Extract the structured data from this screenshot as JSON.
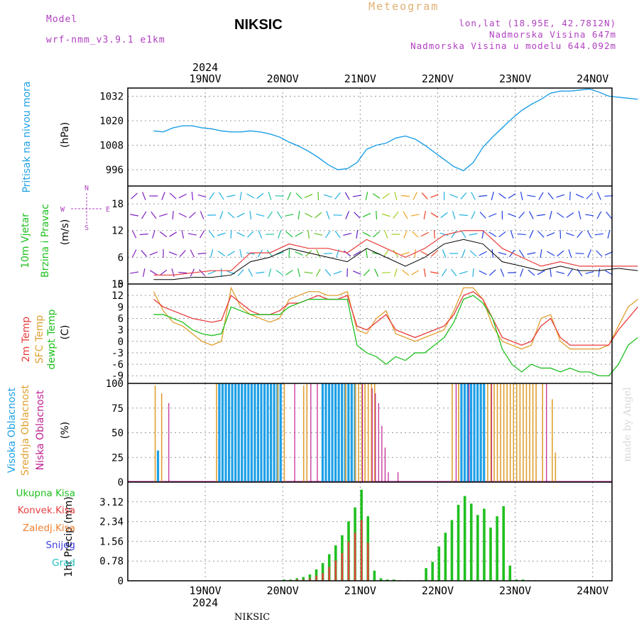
{
  "header": {
    "model_label": "Model",
    "model_value": "wrf-nmm_v3.9.1 e1km",
    "title": "NIKSIC",
    "meteogram": "Meteogram",
    "lonlat": "lon,lat (18.95E, 42.7812N)",
    "altitude": "Nadmorska Visina 647m",
    "altitude_model": "Nadmorska Visina u modelu 644.092m"
  },
  "footer": {
    "station": "NIKSIC",
    "credit": "made by Angel"
  },
  "colors": {
    "pressure": "#1ea0e6",
    "temp2m": "#e83c3c",
    "sfc": "#e0a030",
    "dew": "#20c020",
    "high": "#1ea0e6",
    "mid": "#e0a030",
    "low": "#c02090",
    "total": "#20c020",
    "conv": "#e84040",
    "frozen": "#f08030",
    "snow": "#4040e0",
    "hail": "#20c0c0"
  },
  "chart_data": [
    {
      "type": "line",
      "panel": "pressure",
      "ylabel": [
        "Pritisak na nivou mora",
        "(hPa)"
      ],
      "ylim": [
        988,
        1036
      ],
      "yticks": [
        996,
        1008,
        1020,
        1032
      ],
      "x_days": [
        "19NOV",
        "20NOV",
        "21NOV",
        "22NOV",
        "23NOV",
        "24NOV"
      ],
      "year": "2024",
      "x": [
        0,
        3,
        6,
        9,
        12,
        15,
        18,
        21,
        24,
        27,
        30,
        33,
        36,
        39,
        42,
        45,
        48,
        51,
        54,
        57,
        60,
        63,
        66,
        69,
        72,
        75,
        78,
        81,
        84,
        87,
        90,
        93,
        96,
        99,
        102,
        105,
        108,
        111,
        114,
        117,
        120,
        123,
        126,
        129,
        132,
        135,
        138,
        141,
        144,
        147,
        150
      ],
      "series": [
        {
          "values": [
            1015,
            1014.5,
            1016.5,
            1017.5,
            1017.5,
            1016.5,
            1016,
            1015,
            1014.5,
            1014.5,
            1015,
            1014.5,
            1013.5,
            1012,
            1009.5,
            1007.5,
            1005,
            1002,
            998.5,
            996,
            996.5,
            999.5,
            1006,
            1008,
            1009,
            1011.5,
            1012.5,
            1011,
            1008,
            1004.5,
            1001,
            997.5,
            995.5,
            999.5,
            1007,
            1012,
            1016.5,
            1021,
            1025,
            1028,
            1030.5,
            1033.5,
            1034.5,
            1034.5,
            1035,
            1035.5,
            1034,
            1032,
            1031.5,
            1031,
            1030.5
          ]
        }
      ]
    },
    {
      "type": "line",
      "panel": "wind",
      "ylabel": [
        "10m Vjetar",
        "Brzina i Pravac",
        "(m/s)"
      ],
      "compass": {
        "n": "N",
        "s": "S",
        "e": "E",
        "w": "W"
      },
      "ylim": [
        0,
        22
      ],
      "yticks": [
        0,
        6,
        12,
        18
      ],
      "x": [
        0,
        6,
        12,
        18,
        24,
        30,
        36,
        42,
        48,
        54,
        60,
        66,
        72,
        78,
        84,
        90,
        96,
        102,
        108,
        114,
        120,
        126,
        132,
        138,
        144,
        150
      ],
      "series": [
        {
          "name": "speed",
          "values": [
            1,
            1,
            1.5,
            1.5,
            2,
            5,
            6,
            8,
            7,
            6,
            5,
            8,
            6,
            4,
            6,
            9,
            10,
            9,
            5,
            4,
            3,
            4,
            3,
            3,
            3.5,
            3
          ]
        },
        {
          "name": "gust",
          "values": [
            2,
            2,
            2.5,
            3,
            3,
            7,
            7,
            9,
            8,
            8,
            7,
            10,
            8,
            6,
            8,
            11,
            12,
            12,
            8,
            6,
            4,
            5,
            4,
            4,
            4,
            4
          ]
        }
      ],
      "arrow_colors": [
        "#8020c0",
        "#8020c0",
        "#8020c0",
        "#8020c0",
        "#20b0e0",
        "#20b0e0",
        "#20b0e0",
        "#20c0a0",
        "#20c040",
        "#60c020",
        "#20b0e0",
        "#6020c0",
        "#20c020",
        "#a0d020",
        "#f0a020",
        "#f04020",
        "#20b0e0",
        "#20b0e0",
        "#2040e0",
        "#2040e0",
        "#2040e0",
        "#2040e0",
        "#2040e0",
        "#2040e0",
        "#2040e0",
        "#2040e0"
      ]
    },
    {
      "type": "line",
      "panel": "temperature",
      "ylabel": [
        "2m Temp",
        "SFC Temp",
        "dewpt Temp",
        "(C)"
      ],
      "ylim": [
        -11,
        15
      ],
      "yticks": [
        -9,
        -6,
        -3,
        0,
        3,
        6,
        9,
        12,
        15
      ],
      "x": [
        0,
        3,
        6,
        9,
        12,
        15,
        18,
        21,
        24,
        27,
        30,
        33,
        36,
        39,
        42,
        45,
        48,
        51,
        54,
        57,
        60,
        63,
        66,
        69,
        72,
        75,
        78,
        81,
        84,
        87,
        90,
        93,
        96,
        99,
        102,
        105,
        108,
        111,
        114,
        117,
        120,
        123,
        126,
        129,
        132,
        135,
        138,
        141,
        144,
        147,
        150
      ],
      "series": [
        {
          "name": "2m",
          "values": [
            11,
            9,
            8,
            7,
            6,
            5.5,
            5,
            5.5,
            12,
            10,
            8,
            7,
            7,
            8,
            10,
            10,
            11,
            12,
            11,
            11,
            12,
            4,
            3,
            5,
            7,
            3,
            2,
            1,
            2,
            3,
            4,
            7,
            12,
            13,
            11,
            6,
            1,
            0,
            -1,
            0,
            4,
            6,
            1,
            -1,
            -1,
            -1,
            -1,
            -1,
            3,
            6,
            9
          ]
        },
        {
          "name": "sfc",
          "values": [
            13,
            8,
            5,
            4,
            2,
            0,
            -1,
            0,
            14,
            9,
            7,
            6,
            5,
            6,
            11,
            12,
            13,
            13,
            12,
            12,
            13,
            3,
            2,
            6,
            8,
            2,
            1,
            0,
            1,
            2,
            3,
            8,
            14,
            14,
            11,
            4,
            0,
            -1,
            -2,
            -1,
            6,
            7,
            0,
            -2,
            -2,
            -2,
            -2,
            -1,
            4,
            9,
            11
          ]
        },
        {
          "name": "dewpt",
          "values": [
            7,
            7,
            6,
            5,
            3,
            2,
            1.5,
            2,
            9,
            8,
            7,
            7,
            7,
            7,
            9,
            10,
            11,
            11,
            11,
            11,
            11,
            -1,
            -3,
            -4,
            -6,
            -4,
            -5,
            -3,
            -3,
            -1,
            1,
            5,
            11,
            12,
            10,
            6,
            -2,
            -6,
            -8,
            -6,
            -7,
            -7,
            -8,
            -7,
            -8,
            -8,
            -9,
            -9,
            -6,
            -1,
            1
          ]
        }
      ]
    },
    {
      "type": "bar",
      "panel": "cloud",
      "ylabel": [
        "Visoka Oblacnost",
        "Srednja Oblacnost",
        "Niska Oblacnost",
        "(%)"
      ],
      "ylim": [
        0,
        100
      ],
      "yticks": [
        0,
        25,
        50,
        75,
        100
      ],
      "series": [
        {
          "name": "Visoka",
          "x": [
            1,
            20,
            21,
            22,
            23,
            24,
            25,
            26,
            27,
            28,
            29,
            30,
            31,
            32,
            33,
            34,
            35,
            36,
            37,
            38,
            39,
            52,
            53,
            54,
            55,
            56,
            57,
            58,
            59,
            60,
            61,
            62,
            95,
            96,
            97,
            98,
            99,
            100,
            101,
            102
          ],
          "values": [
            32,
            100,
            100,
            100,
            100,
            100,
            100,
            100,
            100,
            100,
            100,
            100,
            100,
            100,
            100,
            100,
            100,
            100,
            100,
            100,
            100,
            100,
            100,
            100,
            100,
            100,
            100,
            100,
            100,
            100,
            100,
            100,
            100,
            100,
            100,
            100,
            100,
            100,
            100,
            100
          ]
        },
        {
          "name": "Srednja",
          "x": [
            0,
            2,
            19,
            38,
            40,
            46,
            47,
            59,
            62,
            63,
            64,
            65,
            66,
            67,
            68,
            92,
            94,
            103,
            104,
            105,
            106,
            107,
            108,
            109,
            110,
            111,
            112,
            113,
            114,
            115,
            116,
            117,
            118,
            120,
            123,
            124
          ],
          "values": [
            98,
            90,
            100,
            100,
            100,
            98,
            100,
            100,
            100,
            100,
            100,
            100,
            100,
            100,
            100,
            100,
            100,
            100,
            100,
            100,
            100,
            100,
            100,
            100,
            100,
            100,
            100,
            100,
            100,
            100,
            100,
            100,
            100,
            100,
            84,
            30
          ]
        },
        {
          "name": "Niska",
          "x": [
            4,
            43,
            48,
            50,
            64,
            67,
            68,
            69,
            70,
            71,
            72,
            75,
            93,
            97,
            104,
            121
          ],
          "values": [
            80,
            100,
            100,
            100,
            100,
            95,
            90,
            80,
            57,
            35,
            10,
            10,
            100,
            100,
            100,
            100
          ]
        }
      ]
    },
    {
      "type": "bar",
      "panel": "precip",
      "ylabel": [
        "1hr Precip",
        "(mm)"
      ],
      "ylim": [
        0,
        3.9
      ],
      "yticks": [
        "0",
        "0.78",
        "1.56",
        "2.34",
        "3.12"
      ],
      "legend": [
        "Ukupna Kisa",
        "Konvek.Kisa",
        "Zaledj.Kisa",
        "Snijeg",
        "Grad"
      ],
      "series": [
        {
          "name": "Ukupna Kisa",
          "x": [
            40,
            42,
            44,
            46,
            48,
            50,
            52,
            54,
            56,
            58,
            60,
            62,
            64,
            66,
            68,
            70,
            72,
            74,
            76,
            78,
            80,
            82,
            84,
            86,
            88,
            90,
            92,
            94,
            96,
            98,
            100,
            102,
            104,
            106,
            108,
            110,
            112,
            114,
            116,
            118
          ],
          "values": [
            0.05,
            0.05,
            0.1,
            0.15,
            0.25,
            0.45,
            0.7,
            1.05,
            1.4,
            1.8,
            2.35,
            2.9,
            3.6,
            2.55,
            0.4,
            0.1,
            0.05,
            0.05,
            0.02,
            0.02,
            0.02,
            0.02,
            0.5,
            0.75,
            1.35,
            1.9,
            2.4,
            3.0,
            3.35,
            3.05,
            2.6,
            2.85,
            2.1,
            2.55,
            2.95,
            0.6,
            0.05,
            0.05,
            0.02,
            0.02
          ]
        },
        {
          "name": "Konvek.Kisa",
          "x": [
            40,
            42,
            44,
            46,
            48,
            50,
            52,
            54,
            56,
            58,
            60,
            62,
            64,
            66
          ],
          "values": [
            0.02,
            0.02,
            0.05,
            0.05,
            0.1,
            0.2,
            0.3,
            0.55,
            0.8,
            1.1,
            1.55,
            1.9,
            2.4,
            1.5
          ]
        }
      ]
    }
  ]
}
